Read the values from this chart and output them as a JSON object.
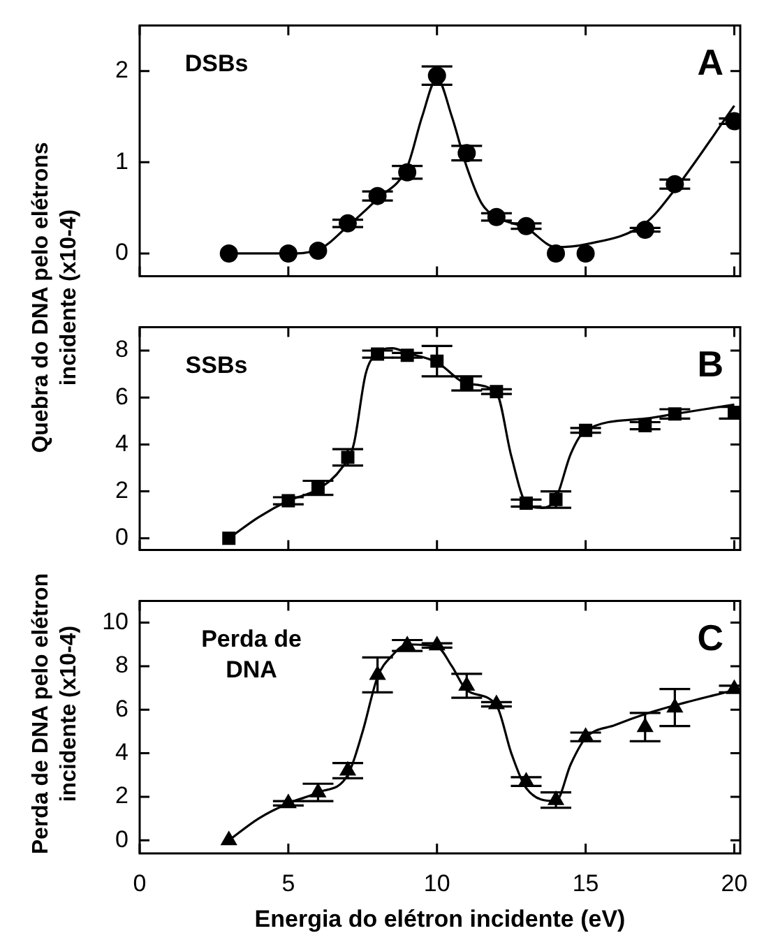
{
  "chart_data": [
    {
      "type": "scatter",
      "ylabel": "Quebra do DNA pelo elétrons incidente (x10-4)",
      "annotations": [
        "A",
        "DSBs"
      ],
      "xlim": [
        0,
        20.2
      ],
      "xticks": [
        0,
        5,
        10,
        15,
        20
      ],
      "ylim": [
        -0.25,
        2.5
      ],
      "yticks": [
        0,
        1,
        2
      ],
      "tick_labels": "y",
      "legend": false,
      "grid": false,
      "series": [
        {
          "type": "scatter",
          "marker": "circle",
          "color": "#000000",
          "x": [
            3,
            5,
            6,
            7,
            8,
            9,
            10,
            11,
            12,
            13,
            14,
            15,
            17,
            18,
            20
          ],
          "values": [
            0,
            0,
            0.03,
            0.33,
            0.63,
            0.89,
            1.95,
            1.1,
            0.4,
            0.3,
            0,
            0,
            0.26,
            0.76,
            1.45
          ],
          "errors": [
            null,
            null,
            null,
            0.04,
            0.05,
            0.07,
            0.1,
            0.08,
            0.04,
            0.03,
            null,
            null,
            0.02,
            0.05,
            0.03
          ]
        },
        {
          "type": "line",
          "marker": "none",
          "color": "#000000",
          "x": [
            3,
            5,
            6,
            7,
            8,
            9,
            9.5,
            10,
            10.5,
            11,
            11.5,
            12,
            13,
            14,
            15,
            17,
            18,
            20
          ],
          "values": [
            0,
            0,
            0.04,
            0.3,
            0.6,
            0.95,
            1.5,
            1.92,
            1.5,
            0.95,
            0.55,
            0.4,
            0.28,
            0.07,
            0.1,
            0.33,
            0.7,
            1.62
          ]
        }
      ]
    },
    {
      "type": "scatter",
      "annotations": [
        "B",
        "SSBs"
      ],
      "xlim": [
        0,
        20.2
      ],
      "xticks": [
        0,
        5,
        10,
        15,
        20
      ],
      "ylim": [
        -0.5,
        9
      ],
      "yticks": [
        0,
        2,
        4,
        6,
        8
      ],
      "tick_labels": "y",
      "legend": false,
      "grid": false,
      "series": [
        {
          "type": "scatter",
          "marker": "square",
          "color": "#000000",
          "x": [
            3,
            5,
            6,
            7,
            8,
            9,
            10,
            11,
            12,
            13,
            14,
            15,
            17,
            18,
            20
          ],
          "values": [
            0,
            1.6,
            2.15,
            3.45,
            7.85,
            7.8,
            7.55,
            6.6,
            6.25,
            1.5,
            1.65,
            4.6,
            4.8,
            5.3,
            5.35
          ],
          "errors": [
            null,
            0.15,
            0.3,
            0.35,
            0.15,
            0.1,
            0.65,
            0.3,
            0.1,
            0.15,
            0.35,
            0.1,
            0.15,
            0.2,
            0.25
          ]
        },
        {
          "type": "line",
          "marker": "none",
          "color": "#000000",
          "x": [
            3,
            4,
            5,
            6,
            6.8,
            7.2,
            7.6,
            8,
            8.5,
            9,
            10,
            11,
            12,
            12.5,
            13,
            13.5,
            14,
            14.5,
            15,
            17,
            18,
            20
          ],
          "values": [
            0,
            0.9,
            1.6,
            2.1,
            3.0,
            4.0,
            7.0,
            7.9,
            8.1,
            7.9,
            7.5,
            6.6,
            6.2,
            3.5,
            1.5,
            1.3,
            1.7,
            3.6,
            4.6,
            5.1,
            5.3,
            5.7
          ]
        }
      ]
    },
    {
      "type": "scatter",
      "xlabel": "Energia do elétron incidente (eV)",
      "ylabel": "Perda de DNA pelo elétron incidente (x10-4)",
      "annotations": [
        "C",
        "Perda de DNA"
      ],
      "xlim": [
        0,
        20.2
      ],
      "xticks": [
        0,
        5,
        10,
        15,
        20
      ],
      "ylim": [
        -0.6,
        11
      ],
      "yticks": [
        0,
        2,
        4,
        6,
        8,
        10
      ],
      "legend": false,
      "grid": false,
      "series": [
        {
          "type": "scatter",
          "marker": "triangle",
          "color": "#000000",
          "x": [
            3,
            5,
            6,
            7,
            8,
            9,
            10,
            11,
            12,
            13,
            14,
            15,
            17,
            18,
            20
          ],
          "values": [
            0,
            1.7,
            2.2,
            3.2,
            7.6,
            8.95,
            8.95,
            7.1,
            6.25,
            2.7,
            1.85,
            4.75,
            5.2,
            6.1,
            6.95
          ],
          "errors": [
            null,
            0.1,
            0.4,
            0.35,
            0.8,
            0.25,
            0.1,
            0.55,
            0.1,
            0.2,
            0.35,
            0.2,
            0.65,
            0.85,
            0.15
          ]
        },
        {
          "type": "line",
          "marker": "none",
          "color": "#000000",
          "x": [
            3,
            4,
            5,
            6,
            7,
            7.5,
            8,
            8.5,
            9,
            10,
            10.5,
            11,
            12,
            12.5,
            13,
            14,
            14.5,
            15,
            16,
            17,
            18,
            20
          ],
          "values": [
            0,
            1.0,
            1.7,
            2.2,
            3.0,
            5.0,
            7.5,
            8.5,
            9.0,
            8.9,
            8.0,
            6.9,
            6.2,
            4.0,
            2.4,
            1.8,
            3.5,
            4.7,
            5.3,
            5.8,
            6.2,
            6.9
          ]
        }
      ]
    }
  ]
}
